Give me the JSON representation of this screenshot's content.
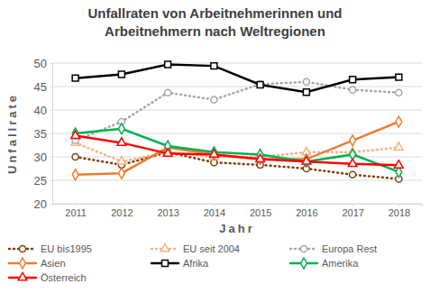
{
  "chart_data": {
    "type": "line",
    "title": "Unfallraten von Arbeitnehmerinnen und Arbeitnehmern nach Weltregionen",
    "x_label": "Jahr",
    "y_label": "Unfallrate",
    "categories": [
      "2011",
      "2012",
      "2013",
      "2014",
      "2015",
      "2016",
      "2017",
      "2018"
    ],
    "ylim": [
      20,
      50
    ],
    "yticks": [
      20,
      25,
      30,
      35,
      40,
      45,
      50
    ],
    "grid": true,
    "legend": "bottom",
    "series": [
      {
        "name": "EU bis1995",
        "color": "#843c0c",
        "marker": "circle",
        "line_style": "dotted",
        "values": [
          30,
          28.3,
          31,
          28.8,
          28.3,
          27.5,
          26.2,
          25.3
        ]
      },
      {
        "name": "EU seit 2004",
        "color": "#f4b183",
        "marker": "triangle",
        "line_style": "dotted",
        "values": [
          33,
          29,
          31,
          30,
          30,
          31,
          31,
          32
        ]
      },
      {
        "name": "Europa Rest",
        "color": "#a6a6a6",
        "marker": "circle",
        "line_style": "dotted",
        "values": [
          33.5,
          37.5,
          43.7,
          42.2,
          45.5,
          46,
          44.3,
          43.7
        ]
      },
      {
        "name": "Asien",
        "color": "#ed7d31",
        "marker": "diamond",
        "line_style": "solid",
        "values": [
          26.2,
          26.5,
          32,
          30.5,
          29.5,
          29.5,
          33.5,
          37.5
        ]
      },
      {
        "name": "Afrika",
        "color": "#000000",
        "marker": "square",
        "line_style": "solid",
        "values": [
          46.8,
          47.6,
          49.7,
          49.4,
          45.4,
          43.8,
          46.5,
          47
        ]
      },
      {
        "name": "Amerika",
        "color": "#00b050",
        "marker": "diamond",
        "line_style": "solid",
        "values": [
          35,
          36,
          32.3,
          31,
          30.5,
          29,
          30.5,
          26.8
        ]
      },
      {
        "name": "Österreich",
        "color": "#ff0000",
        "marker": "triangle",
        "line_style": "solid",
        "values": [
          34.5,
          33,
          30.7,
          30.5,
          29.5,
          29,
          28.5,
          28.2
        ]
      }
    ]
  }
}
